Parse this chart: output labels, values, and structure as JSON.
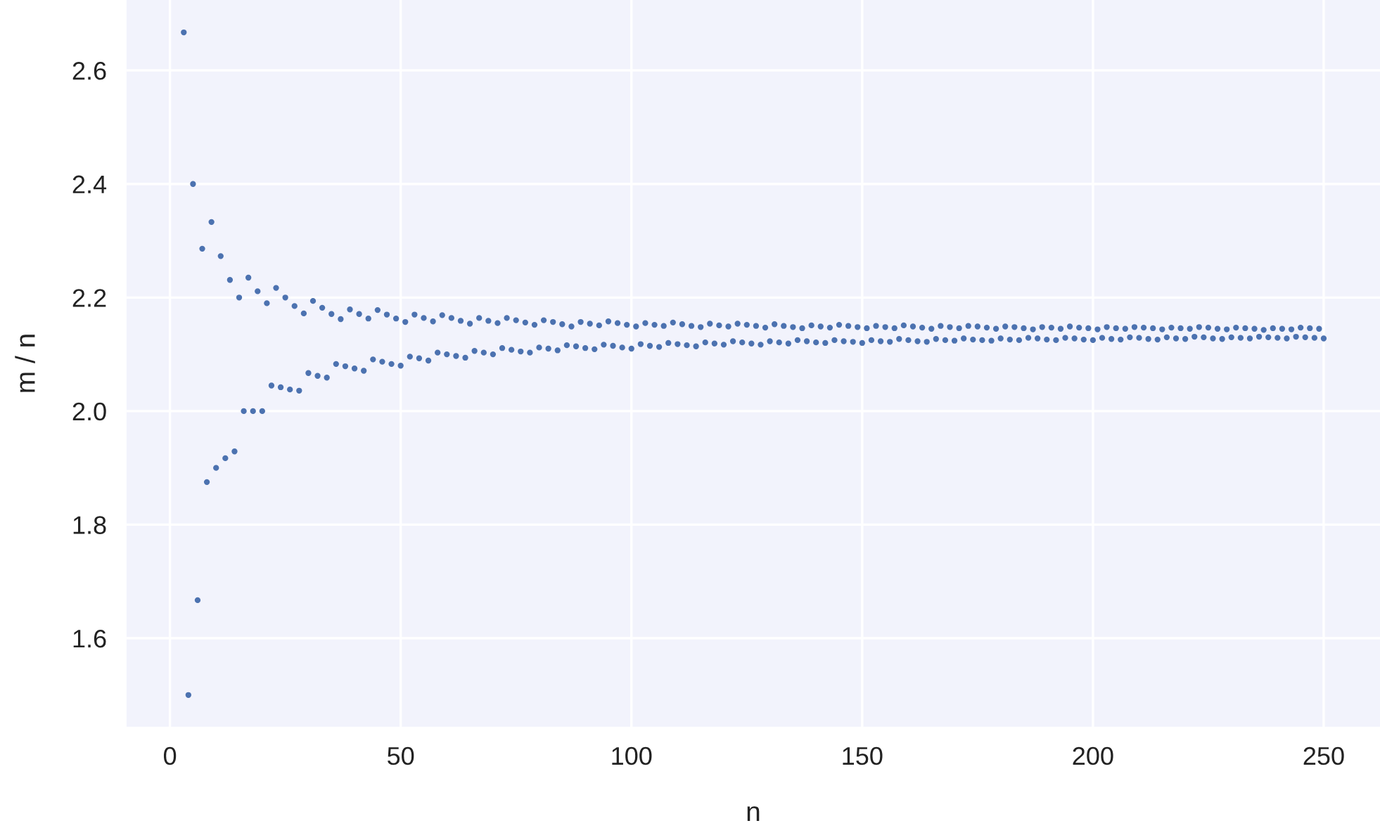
{
  "chart_data": {
    "type": "scatter",
    "xlabel": "n",
    "ylabel": "m / n",
    "xlim": [
      -9.4,
      262.2
    ],
    "ylim": [
      1.444,
      2.724
    ],
    "xticks": [
      0,
      50,
      100,
      150,
      200,
      250
    ],
    "yticks": [
      1.6,
      1.8,
      {
        "value": 2,
        "label": "2.0"
      },
      2.2,
      2.4,
      2.6
    ],
    "grid": true,
    "marker": "circle",
    "series": [
      {
        "color": "#4c72b0",
        "x": [
          3,
          5,
          7,
          9,
          11,
          13,
          15,
          17,
          19,
          21,
          23,
          25,
          27,
          29,
          31,
          33,
          35,
          37,
          39,
          41,
          43,
          45,
          47,
          49,
          51,
          53,
          55,
          57,
          59,
          61,
          63,
          65,
          67,
          69,
          71,
          73,
          75,
          77,
          79,
          81,
          83,
          85,
          87,
          89,
          91,
          93,
          95,
          97,
          99,
          101,
          103,
          105,
          107,
          109,
          111,
          113,
          115,
          117,
          119,
          121,
          123,
          125,
          127,
          129,
          131,
          133,
          135,
          137,
          139,
          141,
          143,
          145,
          147,
          149,
          151,
          153,
          155,
          157,
          159,
          161,
          163,
          165,
          167,
          169,
          171,
          173,
          175,
          177,
          179,
          181,
          183,
          185,
          187,
          189,
          191,
          193,
          195,
          197,
          199,
          201,
          203,
          205,
          207,
          209,
          211,
          213,
          215,
          217,
          219,
          221,
          223,
          225,
          227,
          229,
          231,
          233,
          235,
          237,
          239,
          241,
          243,
          245,
          247,
          249
        ],
        "values": [
          2.667,
          2.4,
          2.286,
          2.333,
          2.273,
          2.231,
          2.2,
          2.235,
          2.211,
          2.19,
          2.217,
          2.2,
          2.185,
          2.172,
          2.194,
          2.182,
          2.171,
          2.162,
          2.179,
          2.171,
          2.163,
          2.178,
          2.17,
          2.163,
          2.157,
          2.17,
          2.164,
          2.158,
          2.169,
          2.164,
          2.159,
          2.154,
          2.164,
          2.159,
          2.155,
          2.164,
          2.16,
          2.156,
          2.152,
          2.16,
          2.157,
          2.153,
          2.149,
          2.157,
          2.154,
          2.151,
          2.158,
          2.155,
          2.152,
          2.149,
          2.155,
          2.152,
          2.15,
          2.156,
          2.153,
          2.15,
          2.148,
          2.154,
          2.151,
          2.149,
          2.154,
          2.152,
          2.15,
          2.147,
          2.153,
          2.15,
          2.148,
          2.146,
          2.151,
          2.149,
          2.147,
          2.152,
          2.15,
          2.148,
          2.146,
          2.15,
          2.148,
          2.146,
          2.151,
          2.149,
          2.147,
          2.145,
          2.15,
          2.148,
          2.146,
          2.15,
          2.149,
          2.147,
          2.145,
          2.149,
          2.148,
          2.146,
          2.144,
          2.148,
          2.147,
          2.145,
          2.149,
          2.147,
          2.146,
          2.144,
          2.148,
          2.146,
          2.145,
          2.148,
          2.147,
          2.146,
          2.144,
          2.147,
          2.146,
          2.145,
          2.148,
          2.147,
          2.145,
          2.144,
          2.147,
          2.146,
          2.145,
          2.143,
          2.146,
          2.145,
          2.144,
          2.147,
          2.146,
          2.145
        ]
      },
      {
        "color": "#4c72b0",
        "x": [
          4,
          6,
          8,
          10,
          12,
          14,
          16,
          18,
          20,
          22,
          24,
          26,
          28,
          30,
          32,
          34,
          36,
          38,
          40,
          42,
          44,
          46,
          48,
          50,
          52,
          54,
          56,
          58,
          60,
          62,
          64,
          66,
          68,
          70,
          72,
          74,
          76,
          78,
          80,
          82,
          84,
          86,
          88,
          90,
          92,
          94,
          96,
          98,
          100,
          102,
          104,
          106,
          108,
          110,
          112,
          114,
          116,
          118,
          120,
          122,
          124,
          126,
          128,
          130,
          132,
          134,
          136,
          138,
          140,
          142,
          144,
          146,
          148,
          150,
          152,
          154,
          156,
          158,
          160,
          162,
          164,
          166,
          168,
          170,
          172,
          174,
          176,
          178,
          180,
          182,
          184,
          186,
          188,
          190,
          192,
          194,
          196,
          198,
          200,
          202,
          204,
          206,
          208,
          210,
          212,
          214,
          216,
          218,
          220,
          222,
          224,
          226,
          228,
          230,
          232,
          234,
          236,
          238,
          240,
          242,
          244,
          246,
          248,
          250
        ],
        "values": [
          1.5,
          1.667,
          1.875,
          1.9,
          1.917,
          1.929,
          2.0,
          2.0,
          2.0,
          2.045,
          2.042,
          2.038,
          2.036,
          2.067,
          2.062,
          2.059,
          2.083,
          2.079,
          2.075,
          2.071,
          2.091,
          2.087,
          2.083,
          2.08,
          2.096,
          2.093,
          2.089,
          2.103,
          2.1,
          2.097,
          2.094,
          2.106,
          2.103,
          2.1,
          2.111,
          2.108,
          2.105,
          2.103,
          2.112,
          2.11,
          2.107,
          2.116,
          2.114,
          2.111,
          2.109,
          2.117,
          2.115,
          2.112,
          2.11,
          2.118,
          2.115,
          2.113,
          2.12,
          2.118,
          2.116,
          2.114,
          2.121,
          2.119,
          2.117,
          2.123,
          2.121,
          2.119,
          2.117,
          2.123,
          2.121,
          2.119,
          2.125,
          2.123,
          2.121,
          2.12,
          2.125,
          2.123,
          2.122,
          2.12,
          2.125,
          2.123,
          2.122,
          2.127,
          2.125,
          2.123,
          2.122,
          2.127,
          2.125,
          2.124,
          2.128,
          2.126,
          2.125,
          2.124,
          2.128,
          2.126,
          2.125,
          2.129,
          2.128,
          2.126,
          2.125,
          2.129,
          2.128,
          2.126,
          2.125,
          2.129,
          2.127,
          2.126,
          2.13,
          2.129,
          2.127,
          2.126,
          2.13,
          2.128,
          2.127,
          2.131,
          2.13,
          2.128,
          2.127,
          2.13,
          2.129,
          2.128,
          2.131,
          2.13,
          2.129,
          2.128,
          2.131,
          2.13,
          2.129,
          2.128
        ]
      }
    ]
  }
}
